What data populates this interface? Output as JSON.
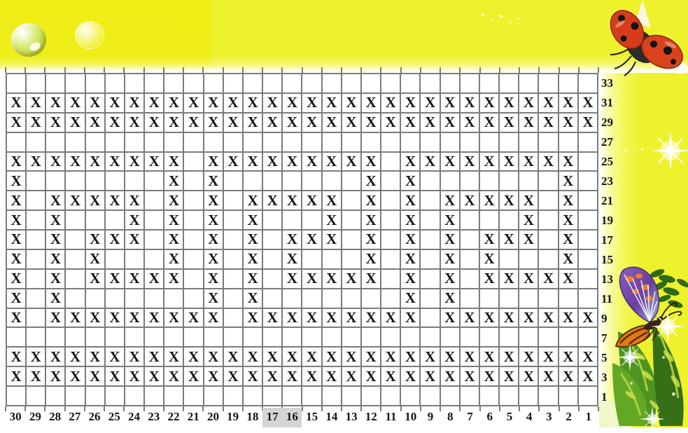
{
  "chart": {
    "type": "stitch-pattern-grid",
    "x_symbol": "X",
    "column_labels": [
      "30",
      "29",
      "28",
      "27",
      "26",
      "25",
      "24",
      "23",
      "22",
      "21",
      "20",
      "19",
      "18",
      "17",
      "16",
      "15",
      "14",
      "13",
      "12",
      "11",
      "10",
      "9",
      "8",
      "7",
      "6",
      "5",
      "4",
      "3",
      "2",
      "1"
    ],
    "highlighted_column_labels": [
      "17",
      "16"
    ],
    "row_labels": [
      "33",
      "31",
      "29",
      "27",
      "25",
      "23",
      "21",
      "19",
      "17",
      "15",
      "13",
      "11",
      "9",
      "7",
      "5",
      "3",
      "1"
    ],
    "rows": [
      {
        "label": "33",
        "cells": ".............................."
      },
      {
        "label": "31",
        "cells": "XXXXXXXXXXXXXXXXXXXXXXXXXXXXXX"
      },
      {
        "label": "29",
        "cells": "XXXXXXXXXXXXXXXXXXXXXXXXXXXXXX"
      },
      {
        "label": "27",
        "cells": ".............................."
      },
      {
        "label": "25",
        "cells": "XXXXXXXXX.XXXXXXXXX.XXXXXXXXX."
      },
      {
        "label": "23",
        "cells": "X.......X.X.......X.X.......X."
      },
      {
        "label": "21",
        "cells": "X.XXXXX.X.X.XXXXX.X.X.XXXXX.X."
      },
      {
        "label": "19",
        "cells": "X.X...X.X.X.X...X.X.X.X...X.X."
      },
      {
        "label": "17",
        "cells": "X.X.XXX.X.X.X.XXX.X.X.X.XXX.X."
      },
      {
        "label": "15",
        "cells": "X.X.X...X.X.X.X...X.X.X.X...X."
      },
      {
        "label": "13",
        "cells": "X.X.XXXXX.X.X.XXXXX.X.X.XXXXX."
      },
      {
        "label": "11",
        "cells": "X.X.......X.X.......X.X......."
      },
      {
        "label": "9",
        "cells": "X.XXXXXXXXX.XXXXXXXXX.XXXXXXXX"
      },
      {
        "label": "7",
        "cells": ".............................."
      },
      {
        "label": "5",
        "cells": "XXXXXXXXXXXXXXXXXXXXXXXXXXXXXX"
      },
      {
        "label": "3",
        "cells": "XXXXXXXXXXXXXXXXXXXXXXXXXXXXXX"
      },
      {
        "label": "1",
        "cells": ".............................."
      }
    ]
  },
  "colors": {
    "background_yellow": "#edf22d",
    "deep_yellow": "#f0ec12",
    "grid_line": "#7b7b7b",
    "mark": "#141414",
    "label": "#141414",
    "column_highlight": "#d5d5d5",
    "pale_green_strip": "#f0f7c8",
    "ladybug_red": "#d63c1a",
    "butterfly_purple": "#6b3fa0",
    "butterfly_orange": "#e07818",
    "fern_green": "#3f7d1e"
  },
  "decorations": [
    "glass-bubble",
    "faint-bubble",
    "ladybug",
    "sparkles",
    "butterfly",
    "fern-leaves"
  ]
}
